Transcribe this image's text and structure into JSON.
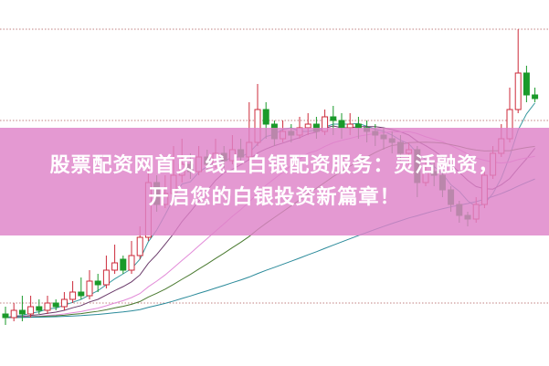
{
  "banner": {
    "line1": "股票配资网首页 线上白银配资服务：灵活融资，",
    "line2": "开启您的白银投资新篇章！"
  },
  "chart_data": {
    "type": "candlestick",
    "title": "",
    "xlabel": "",
    "ylabel": "",
    "ylim": [
      0,
      100
    ],
    "grid": "dotted horizontal",
    "candle_fields": [
      "open",
      "close",
      "high",
      "low"
    ],
    "candles": [
      [
        14,
        13,
        16,
        11
      ],
      [
        13,
        15,
        17,
        12
      ],
      [
        15,
        14,
        19,
        12
      ],
      [
        14,
        16,
        19,
        13
      ],
      [
        16,
        15,
        18,
        14
      ],
      [
        15,
        17,
        19,
        14
      ],
      [
        17,
        16,
        18,
        15
      ],
      [
        16,
        18,
        20,
        15
      ],
      [
        18,
        20,
        23,
        17
      ],
      [
        20,
        19,
        24,
        18
      ],
      [
        19,
        23,
        26,
        18
      ],
      [
        23,
        22,
        25,
        20
      ],
      [
        22,
        26,
        30,
        21
      ],
      [
        26,
        28,
        33,
        25
      ],
      [
        29,
        26,
        30,
        25
      ],
      [
        26,
        30,
        34,
        25
      ],
      [
        30,
        35,
        38,
        29
      ],
      [
        35,
        50,
        55,
        34
      ],
      [
        50,
        44,
        52,
        42
      ],
      [
        44,
        47,
        52,
        43
      ],
      [
        47,
        52,
        60,
        46
      ],
      [
        52,
        55,
        62,
        50
      ],
      [
        55,
        53,
        58,
        51
      ],
      [
        53,
        57,
        60,
        52
      ],
      [
        57,
        55,
        59,
        53
      ],
      [
        55,
        58,
        62,
        54
      ],
      [
        58,
        56,
        60,
        54
      ],
      [
        56,
        59,
        63,
        55
      ],
      [
        59,
        57,
        62,
        56
      ],
      [
        57,
        61,
        72,
        56
      ],
      [
        61,
        70,
        77,
        60
      ],
      [
        70,
        66,
        72,
        62
      ],
      [
        66,
        62,
        67,
        60
      ],
      [
        62,
        64,
        67,
        61
      ],
      [
        64,
        63,
        66,
        61
      ],
      [
        63,
        65,
        68,
        62
      ],
      [
        65,
        66,
        69,
        63
      ],
      [
        66,
        64,
        68,
        62
      ],
      [
        64,
        68,
        70,
        63
      ],
      [
        68,
        67,
        71,
        63
      ],
      [
        67,
        65,
        69,
        62
      ],
      [
        65,
        66,
        69,
        63
      ],
      [
        66,
        65,
        68,
        62
      ],
      [
        65,
        64,
        67,
        61
      ],
      [
        64,
        63,
        66,
        60
      ],
      [
        63,
        62,
        65,
        59
      ],
      [
        62,
        61,
        64,
        58
      ],
      [
        61,
        58,
        63,
        56
      ],
      [
        58,
        59,
        61,
        55
      ],
      [
        59,
        50,
        60,
        46
      ],
      [
        50,
        53,
        56,
        49
      ],
      [
        53,
        52,
        56,
        49
      ],
      [
        52,
        48,
        54,
        46
      ],
      [
        48,
        44,
        49,
        42
      ],
      [
        44,
        41,
        45,
        39
      ],
      [
        41,
        40,
        42,
        38
      ],
      [
        40,
        44,
        46,
        39
      ],
      [
        44,
        52,
        54,
        43
      ],
      [
        52,
        58,
        60,
        51
      ],
      [
        58,
        62,
        66,
        57
      ],
      [
        62,
        70,
        76,
        61
      ],
      [
        70,
        80,
        92,
        69
      ],
      [
        80,
        74,
        82,
        72
      ],
      [
        74,
        73,
        76,
        72
      ]
    ],
    "gridlines": [
      92,
      67,
      17
    ],
    "moving_averages": [
      {
        "period": 5,
        "color": "#3a9aa0"
      },
      {
        "period": 10,
        "color": "#6a3a6a"
      },
      {
        "period": 20,
        "color": "#e28ad8"
      },
      {
        "period": 30,
        "color": "#4a7a30"
      },
      {
        "period": 60,
        "color": "#2a8a9a"
      }
    ],
    "colors": {
      "up": "#cc2a3a",
      "down": "#1a9a2a",
      "grid": "#c08080"
    }
  }
}
